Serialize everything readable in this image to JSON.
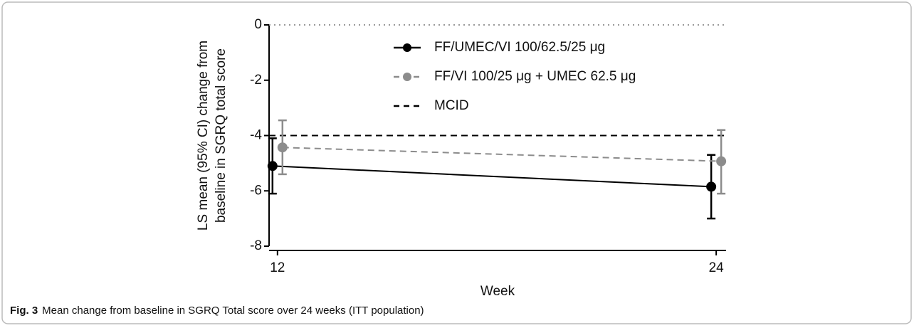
{
  "chart_data": {
    "type": "line",
    "x": [
      12,
      24
    ],
    "xlim": [
      11.77,
      24.27
    ],
    "xticks": [
      12,
      24
    ],
    "xlabel": "Week",
    "ylabel": [
      "LS mean (95% CI) change from",
      "baseline in SGRQ total score"
    ],
    "ylim": [
      -8,
      0
    ],
    "yticks": [
      0,
      -2,
      -4,
      -6,
      -8
    ],
    "zero_line": {
      "value": 0,
      "color": "#999999",
      "dash": "dotted"
    },
    "series": [
      {
        "name": "FF/UMEC/VI 100/62.5/25 μg",
        "color": "#000000",
        "dash": "solid",
        "values": [
          -5.1,
          -5.85
        ],
        "lower": [
          -6.1,
          -7.0
        ],
        "upper": [
          -4.1,
          -4.7
        ]
      },
      {
        "name": "FF/VI 100/25 μg + UMEC 62.5 μg",
        "color": "#8c8c8c",
        "dash": "dashed",
        "values": [
          -4.43,
          -4.93
        ],
        "lower": [
          -5.4,
          -6.1
        ],
        "upper": [
          -3.45,
          -3.8
        ]
      }
    ],
    "hlines": [
      {
        "name": "MCID",
        "value": -4,
        "color": "#000000",
        "dash": "dashed"
      }
    ]
  },
  "caption": {
    "label": "Fig. 3",
    "text": "Mean change from baseline in SGRQ Total score over 24 weeks (ITT population)"
  }
}
